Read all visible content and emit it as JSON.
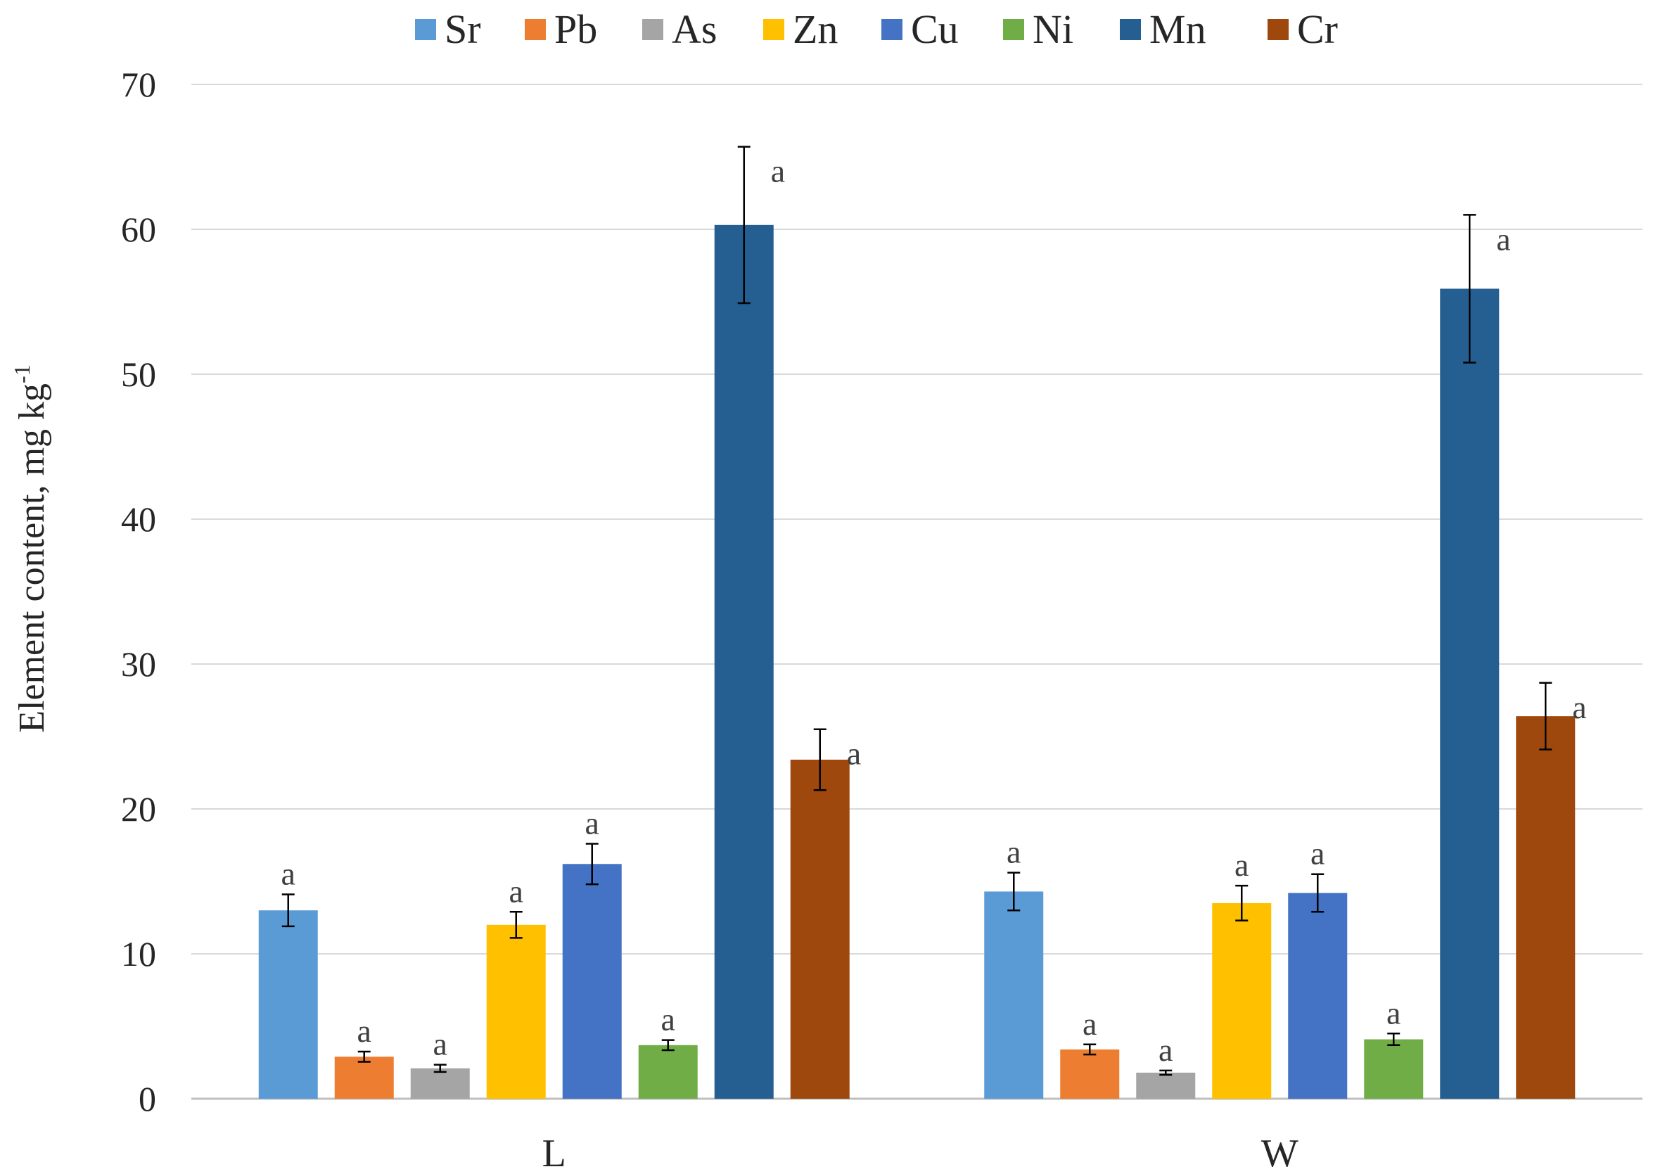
{
  "chart_data": {
    "type": "bar",
    "title": "",
    "xlabel": "",
    "ylabel": "Element content, mg kg",
    "ylabel_superscript": "-1",
    "ylim": [
      0,
      70
    ],
    "yticks": [
      0,
      10,
      20,
      30,
      40,
      50,
      60,
      70
    ],
    "grid": true,
    "legend_position": "top",
    "categories": [
      "L",
      "W"
    ],
    "series": [
      {
        "name": "Sr",
        "color": "#5B9BD5",
        "values": [
          13.0,
          14.3
        ],
        "errors": [
          1.1,
          1.3
        ],
        "labels": [
          "a",
          "a"
        ]
      },
      {
        "name": "Pb",
        "color": "#ED7D31",
        "values": [
          2.9,
          3.4
        ],
        "errors": [
          0.35,
          0.35
        ],
        "labels": [
          "a",
          "a"
        ]
      },
      {
        "name": "As",
        "color": "#A5A5A5",
        "values": [
          2.1,
          1.8
        ],
        "errors": [
          0.25,
          0.15
        ],
        "labels": [
          "a",
          "a"
        ]
      },
      {
        "name": "Zn",
        "color": "#FFC000",
        "values": [
          12.0,
          13.5
        ],
        "errors": [
          0.9,
          1.2
        ],
        "labels": [
          "a",
          "a"
        ]
      },
      {
        "name": "Cu",
        "color": "#4472C4",
        "values": [
          16.2,
          14.2
        ],
        "errors": [
          1.4,
          1.3
        ],
        "labels": [
          "a",
          "a"
        ]
      },
      {
        "name": "Ni",
        "color": "#70AD47",
        "values": [
          3.7,
          4.1
        ],
        "errors": [
          0.35,
          0.4
        ],
        "labels": [
          "a",
          "a"
        ]
      },
      {
        "name": "Mn",
        "color": "#255E91",
        "values": [
          60.3,
          55.9
        ],
        "errors": [
          5.4,
          5.1
        ],
        "labels": [
          "a",
          "a"
        ]
      },
      {
        "name": "Cr",
        "color": "#9E480E",
        "values": [
          23.4,
          26.4
        ],
        "errors": [
          2.1,
          2.3
        ],
        "labels": [
          "a",
          "a"
        ]
      }
    ]
  }
}
